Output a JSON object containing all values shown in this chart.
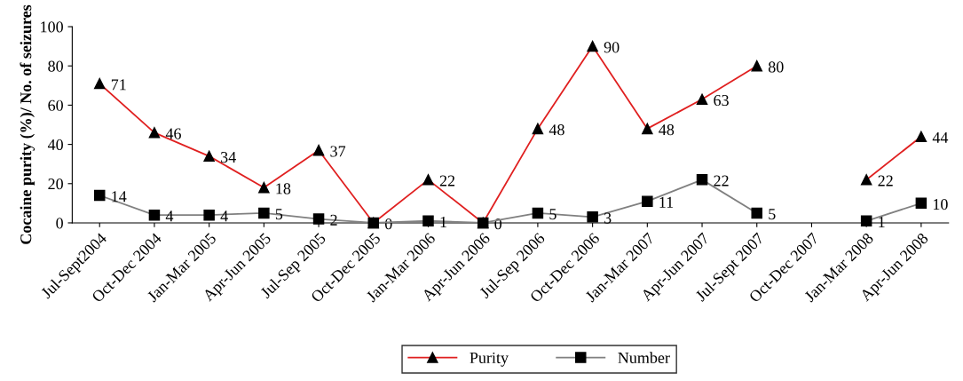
{
  "chart_data": {
    "type": "line",
    "ylabel": "Cocaine purity (%)/ No. of seizures",
    "categories": [
      "Jul-Sept2004",
      "Oct-Dec 2004",
      "Jan-Mar 2005",
      "Apr-Jun 2005",
      "Jul-Sep 2005",
      "Oct-Dec 2005",
      "Jan-Mar 2006",
      "Apr-Jun 2006",
      "Jul-Sep 2006",
      "Oct-Dec 2006",
      "Jan-Mar 2007",
      "Apr-Jun 2007",
      "Jul-Sept 2007",
      "Oct-Dec 2007",
      "Jan-Mar 2008",
      "Apr-Jun 2008"
    ],
    "series": [
      {
        "name": "Purity",
        "color": "#e02020",
        "marker": "triangle",
        "values": [
          71,
          46,
          34,
          18,
          37,
          0,
          22,
          0,
          48,
          90,
          48,
          63,
          80,
          null,
          22,
          44
        ],
        "value_labels": [
          "71",
          "46",
          "34",
          "18",
          "37",
          "0",
          "22",
          "0",
          "48",
          "90",
          "48",
          "63",
          "80",
          null,
          "22",
          "44"
        ]
      },
      {
        "name": "Number",
        "color": "#808080",
        "marker": "square",
        "values": [
          14,
          4,
          4,
          5,
          2,
          0,
          1,
          0,
          5,
          3,
          11,
          22,
          5,
          null,
          1,
          10
        ],
        "value_labels": [
          "14",
          "4",
          "4",
          "5",
          "2",
          null,
          "1",
          null,
          "5",
          "3",
          "11",
          "22",
          "5",
          null,
          "1",
          "10"
        ]
      }
    ],
    "ylim": [
      0,
      100
    ],
    "yticks": [
      0,
      20,
      40,
      60,
      80,
      100
    ],
    "grid": false,
    "legend": "bottom",
    "line_style": "solid"
  }
}
